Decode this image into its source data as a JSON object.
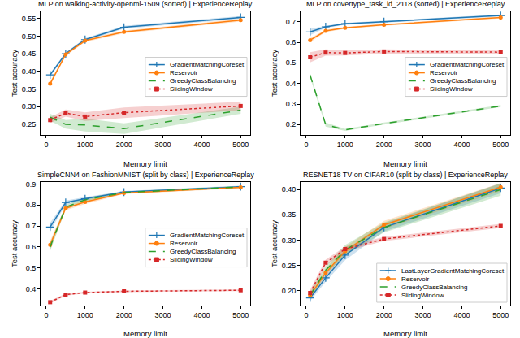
{
  "chart_data": [
    {
      "type": "line",
      "title": "MLP on walking-activity-openml-1509 (sorted) | ExperienceReplay",
      "x_label": "Memory limit",
      "y_label": "Test accuracy",
      "x": [
        100,
        500,
        1000,
        2000,
        5000
      ],
      "xlim": [
        -145,
        5245
      ],
      "xticks": [
        0,
        1000,
        2000,
        3000,
        4000,
        5000
      ],
      "ylim": [
        0.22,
        0.57
      ],
      "yticks": [
        0.25,
        {
          "value": 0.3,
          "label": "0.30"
        },
        0.35,
        {
          "value": 0.4,
          "label": "0.40"
        },
        0.45,
        {
          "value": 0.5,
          "label": "0.50"
        },
        0.55
      ],
      "grid": false,
      "legend": "center right",
      "series": [
        {
          "name": "GradientMatchingCoreset",
          "color": "#1f77b4",
          "marker": "plus",
          "line_style": "solid",
          "values": [
            0.39,
            0.45,
            0.49,
            0.525,
            0.553
          ],
          "errors": [
            0.005,
            0.004,
            0.004,
            0.004,
            0.004
          ]
        },
        {
          "name": "Reservoir",
          "color": "#ff7f0e",
          "marker": "circle",
          "line_style": "solid",
          "values": [
            0.365,
            0.448,
            0.487,
            0.512,
            0.545
          ],
          "errors": [
            0.006,
            0.004,
            0.004,
            0.004,
            0.004
          ]
        },
        {
          "name": "GreedyClassBalancing",
          "color": "#2ca02c",
          "marker": "none",
          "line_style": "dashed",
          "values": [
            0.27,
            0.25,
            0.248,
            0.238,
            0.29
          ],
          "errors": [
            0.01,
            0.012,
            0.018,
            0.015,
            0.01
          ]
        },
        {
          "name": "SlidingWindow",
          "color": "#d62728",
          "marker": "square",
          "line_style": "dotted",
          "values": [
            0.262,
            0.282,
            0.272,
            0.283,
            0.302
          ],
          "errors": [
            0.008,
            0.01,
            0.012,
            0.015,
            0.012
          ]
        }
      ]
    },
    {
      "type": "line",
      "title": "MLP on covertype_task_id_2118 (sorted) | ExperienceReplay",
      "x_label": "Memory limit",
      "y_label": "Test accuracy",
      "x": [
        100,
        500,
        1000,
        2000,
        5000
      ],
      "xlim": [
        -145,
        5245
      ],
      "xticks": [
        0,
        1000,
        2000,
        3000,
        4000,
        5000
      ],
      "ylim": [
        0.15,
        0.75
      ],
      "yticks": [
        0.2,
        0.3,
        0.4,
        0.5,
        0.6,
        0.7
      ],
      "grid": false,
      "legend": "center right",
      "series": [
        {
          "name": "GradientMatchingCoreset",
          "color": "#1f77b4",
          "marker": "plus",
          "line_style": "solid",
          "values": [
            0.65,
            0.675,
            0.69,
            0.7,
            0.73
          ],
          "errors": [
            0.015,
            0.005,
            0.005,
            0.005,
            0.005
          ]
        },
        {
          "name": "Reservoir",
          "color": "#ff7f0e",
          "marker": "circle",
          "line_style": "solid",
          "values": [
            0.61,
            0.655,
            0.67,
            0.685,
            0.72
          ],
          "errors": [
            0.01,
            0.006,
            0.005,
            0.005,
            0.005
          ]
        },
        {
          "name": "GreedyClassBalancing",
          "color": "#2ca02c",
          "marker": "none",
          "line_style": "dashed",
          "values": [
            0.44,
            0.2,
            0.175,
            0.205,
            0.29
          ],
          "errors": [
            0.01,
            0.01,
            0.005,
            0.005,
            0.005
          ]
        },
        {
          "name": "SlidingWindow",
          "color": "#d62728",
          "marker": "square",
          "line_style": "dotted",
          "values": [
            0.527,
            0.55,
            0.548,
            0.555,
            0.552
          ],
          "errors": [
            0.025,
            0.015,
            0.012,
            0.01,
            0.008
          ]
        }
      ]
    },
    {
      "type": "line",
      "title": "SimpleCNN4 on FashionMNIST (split by class) | ExperienceReplay",
      "x_label": "Memory limit",
      "y_label": "Test accuracy",
      "x": [
        100,
        500,
        1000,
        2000,
        5000
      ],
      "xlim": [
        -145,
        5245
      ],
      "xticks": [
        0,
        1000,
        2000,
        3000,
        4000,
        5000
      ],
      "ylim": [
        0.32,
        0.91
      ],
      "yticks": [
        0.4,
        0.5,
        0.6,
        0.7,
        0.8,
        0.9
      ],
      "grid": false,
      "legend": "center right",
      "series": [
        {
          "name": "GradientMatchingCoreset",
          "color": "#1f77b4",
          "marker": "plus",
          "line_style": "solid",
          "values": [
            0.695,
            0.812,
            0.83,
            0.862,
            0.888
          ],
          "errors": [
            0.02,
            0.01,
            0.008,
            0.005,
            0.005
          ]
        },
        {
          "name": "Reservoir",
          "color": "#ff7f0e",
          "marker": "circle",
          "line_style": "solid",
          "values": [
            0.61,
            0.785,
            0.815,
            0.858,
            0.885
          ],
          "errors": [
            0.02,
            0.01,
            0.01,
            0.005,
            0.005
          ]
        },
        {
          "name": "GreedyClassBalancing",
          "color": "#2ca02c",
          "marker": "none",
          "line_style": "dashed",
          "values": [
            0.6,
            0.79,
            0.825,
            0.86,
            0.887
          ],
          "errors": [
            0.02,
            0.01,
            0.01,
            0.005,
            0.005
          ]
        },
        {
          "name": "SlidingWindow",
          "color": "#d62728",
          "marker": "square",
          "line_style": "dotted",
          "values": [
            0.336,
            0.372,
            0.382,
            0.388,
            0.393
          ],
          "errors": [
            0.006,
            0.005,
            0.004,
            0.004,
            0.004
          ]
        }
      ]
    },
    {
      "type": "line",
      "title": "RESNET18 TV on CIFAR10 (split by class) | ExperienceReplay",
      "x_label": "Memory limit",
      "y_label": "Test accuracy",
      "x": [
        100,
        500,
        1000,
        2000,
        5000
      ],
      "xlim": [
        -145,
        5245
      ],
      "xticks": [
        0,
        1000,
        2000,
        3000,
        4000,
        5000
      ],
      "ylim": [
        0.17,
        0.415
      ],
      "yticks": [
        {
          "value": 0.2,
          "label": "0.20"
        },
        0.25,
        {
          "value": 0.3,
          "label": "0.30"
        },
        0.35,
        {
          "value": 0.4,
          "label": "0.40"
        }
      ],
      "grid": false,
      "legend": "lower right",
      "series": [
        {
          "name": "LastLayerGradientMatchingCoreset",
          "color": "#1f77b4",
          "marker": "plus",
          "line_style": "solid",
          "values": [
            0.185,
            0.225,
            0.27,
            0.325,
            0.403
          ],
          "errors": [
            0.006,
            0.008,
            0.01,
            0.008,
            0.01
          ]
        },
        {
          "name": "Reservoir",
          "color": "#ff7f0e",
          "marker": "circle",
          "line_style": "solid",
          "values": [
            0.19,
            0.235,
            0.278,
            0.33,
            0.405
          ],
          "errors": [
            0.006,
            0.008,
            0.008,
            0.008,
            0.008
          ]
        },
        {
          "name": "GreedyClassBalancing",
          "color": "#2ca02c",
          "marker": "none",
          "line_style": "dashed",
          "values": [
            0.19,
            0.24,
            0.28,
            0.325,
            0.4
          ],
          "errors": [
            0.006,
            0.008,
            0.01,
            0.01,
            0.012
          ]
        },
        {
          "name": "SlidingWindow",
          "color": "#d62728",
          "marker": "square",
          "line_style": "dotted",
          "values": [
            0.195,
            0.255,
            0.282,
            0.302,
            0.328
          ],
          "errors": [
            0.006,
            0.006,
            0.005,
            0.004,
            0.004
          ]
        }
      ]
    }
  ]
}
